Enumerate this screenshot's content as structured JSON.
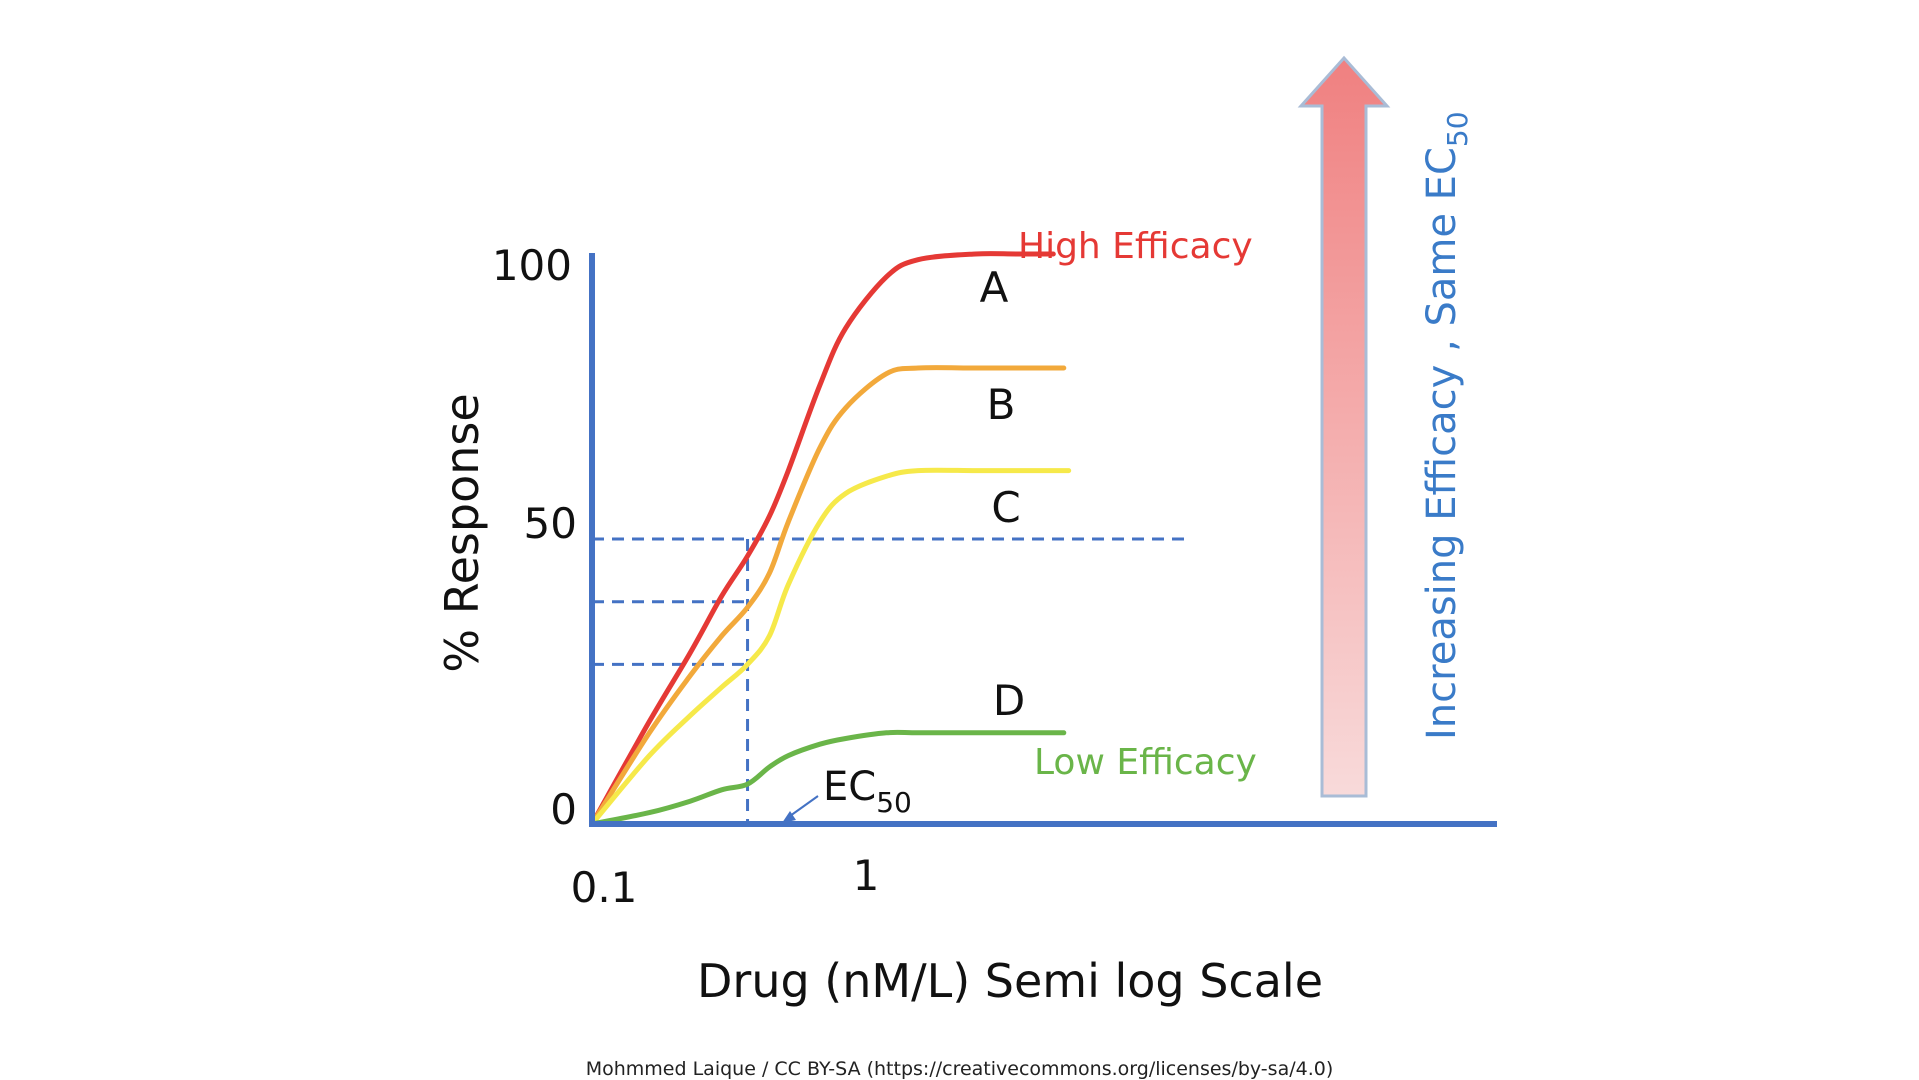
{
  "chart_data": {
    "type": "line",
    "xlabel": "Drug (nM/L) Semi log Scale",
    "ylabel": "% Response",
    "x_scale": "log",
    "x_ticks": [
      "0.1",
      "1"
    ],
    "y_ticks": [
      "0",
      "50",
      "100"
    ],
    "ylim": [
      0,
      100
    ],
    "ec50_label": "EC",
    "ec50_subscript": "50",
    "series": [
      {
        "name": "A",
        "color": "#e53935",
        "x": [
          0.1,
          0.15,
          0.2,
          0.25,
          0.3,
          0.35,
          0.4,
          0.5,
          0.6,
          0.8,
          1.0,
          1.5,
          2.0,
          2.6
        ],
        "values": [
          0,
          18,
          30,
          40,
          47,
          54,
          62,
          77,
          87,
          96,
          99,
          100,
          100,
          100
        ]
      },
      {
        "name": "B",
        "color": "#f2a93b",
        "x": [
          0.1,
          0.15,
          0.2,
          0.25,
          0.3,
          0.35,
          0.4,
          0.5,
          0.6,
          0.8,
          1.0,
          1.5,
          2.0,
          2.8
        ],
        "values": [
          0,
          16,
          26,
          33,
          38,
          44,
          53,
          66,
          73,
          79,
          80,
          80,
          80,
          80
        ]
      },
      {
        "name": "C",
        "color": "#f6e94a",
        "x": [
          0.1,
          0.15,
          0.2,
          0.25,
          0.3,
          0.35,
          0.4,
          0.5,
          0.6,
          0.8,
          1.0,
          1.5,
          2.0,
          2.9
        ],
        "values": [
          0,
          12,
          19,
          24,
          28,
          33,
          42,
          53,
          58,
          61,
          62,
          62,
          62,
          62
        ]
      },
      {
        "name": "D",
        "color": "#6ab549",
        "x": [
          0.1,
          0.15,
          0.2,
          0.25,
          0.3,
          0.35,
          0.4,
          0.5,
          0.6,
          0.8,
          1.0,
          1.5,
          2.0,
          2.8
        ],
        "values": [
          0,
          2,
          4,
          6,
          7,
          10,
          12,
          14,
          15,
          16,
          16,
          16,
          16,
          16
        ]
      }
    ],
    "reference_lines": {
      "horizontal": [
        50,
        39,
        28
      ],
      "vertical_x": 0.3
    },
    "annotations": {
      "high": {
        "text": "High Efficacy",
        "color": "#e53935"
      },
      "low": {
        "text": "Low Efficacy",
        "color": "#6ab549"
      },
      "arrow_label": "Increasing Efficacy , Same EC",
      "arrow_label_sub": "50"
    }
  },
  "colors": {
    "axis": "#4472c4",
    "dash": "#4472c4",
    "arrow_top": "#f08080",
    "arrow_bottom": "#f8dada"
  },
  "credit": "Mohmmed Laique / CC BY-SA (https://creativecommons.org/licenses/by-sa/4.0)"
}
